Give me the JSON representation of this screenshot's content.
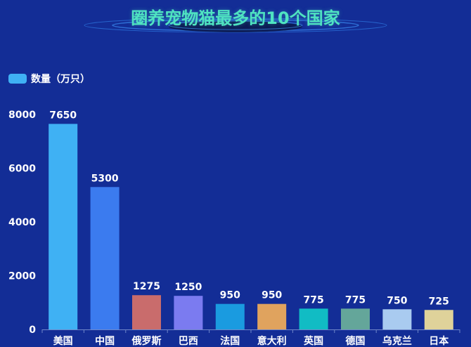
{
  "title": "圈养宠物猫最多的10个国家",
  "chart_data": {
    "type": "bar",
    "title": "圈养宠物猫最多的10个国家",
    "categories": [
      "美国",
      "中国",
      "俄罗斯",
      "巴西",
      "法国",
      "意大利",
      "英国",
      "德国",
      "乌克兰",
      "日本"
    ],
    "series": [
      {
        "name": "数量（万只）",
        "values": [
          7650,
          5300,
          1275,
          1250,
          950,
          950,
          775,
          775,
          750,
          725
        ]
      }
    ],
    "bar_colors": [
      "#3fb1f4",
      "#3b7bef",
      "#c96c6c",
      "#7b7bf0",
      "#1a9be0",
      "#e0a35e",
      "#11bcc4",
      "#64a69a",
      "#a9cbf0",
      "#dfd29a"
    ],
    "ylim": [
      0,
      8000
    ],
    "yticks": [
      0,
      2000,
      4000,
      6000,
      8000
    ],
    "xlabel": "",
    "ylabel": "",
    "grid": false,
    "legend_position": "top-left",
    "data_labels": true
  }
}
